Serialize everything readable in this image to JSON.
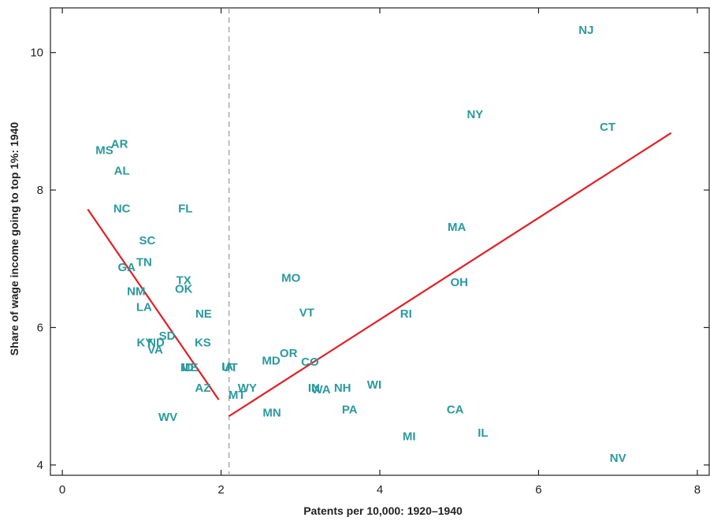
{
  "chart_data": {
    "type": "scatter",
    "title": "",
    "xlabel": "Patents per 10,000: 1920–1940",
    "ylabel": "Share of wage income going to top 1%: 1940",
    "xlim": [
      -0.15,
      8.15
    ],
    "ylim": [
      3.85,
      10.65
    ],
    "x_ticks": [
      0,
      2,
      4,
      6,
      8
    ],
    "y_ticks": [
      4,
      6,
      8,
      10
    ],
    "grid": false,
    "legend": "none",
    "threshold_x": 2.1,
    "colors": {
      "points": "#2a9a9e",
      "fit": "#e31e24",
      "threshold": "#a7a9ac",
      "axes": "#231f20"
    },
    "points": [
      {
        "label": "NJ",
        "x": 6.6,
        "y": 10.33
      },
      {
        "label": "CT",
        "x": 6.87,
        "y": 8.92
      },
      {
        "label": "NY",
        "x": 5.2,
        "y": 9.1
      },
      {
        "label": "MA",
        "x": 4.97,
        "y": 7.46
      },
      {
        "label": "OH",
        "x": 5.0,
        "y": 6.66
      },
      {
        "label": "RI",
        "x": 4.33,
        "y": 6.2
      },
      {
        "label": "MS",
        "x": 0.53,
        "y": 8.58
      },
      {
        "label": "AR",
        "x": 0.72,
        "y": 8.67
      },
      {
        "label": "AL",
        "x": 0.75,
        "y": 8.28
      },
      {
        "label": "NC",
        "x": 0.75,
        "y": 7.73
      },
      {
        "label": "FL",
        "x": 1.55,
        "y": 7.73
      },
      {
        "label": "SC",
        "x": 1.07,
        "y": 7.27
      },
      {
        "label": "TN",
        "x": 1.03,
        "y": 6.95
      },
      {
        "label": "GA",
        "x": 0.81,
        "y": 6.88
      },
      {
        "label": "TX",
        "x": 1.53,
        "y": 6.69
      },
      {
        "label": "OK",
        "x": 1.53,
        "y": 6.56
      },
      {
        "label": "NM",
        "x": 0.93,
        "y": 6.53
      },
      {
        "label": "LA",
        "x": 1.03,
        "y": 6.3
      },
      {
        "label": "NE",
        "x": 1.78,
        "y": 6.2
      },
      {
        "label": "SD",
        "x": 1.32,
        "y": 5.88
      },
      {
        "label": "KY",
        "x": 1.04,
        "y": 5.78
      },
      {
        "label": "ND",
        "x": 1.18,
        "y": 5.78
      },
      {
        "label": "VA",
        "x": 1.17,
        "y": 5.68
      },
      {
        "label": "KS",
        "x": 1.77,
        "y": 5.78
      },
      {
        "label": "ID",
        "x": 1.58,
        "y": 5.42
      },
      {
        "label": "ME",
        "x": 1.6,
        "y": 5.42
      },
      {
        "label": "IA",
        "x": 2.08,
        "y": 5.43
      },
      {
        "label": "UT",
        "x": 2.11,
        "y": 5.42
      },
      {
        "label": "AZ",
        "x": 1.77,
        "y": 5.12
      },
      {
        "label": "WV",
        "x": 1.33,
        "y": 4.7
      },
      {
        "label": "WY",
        "x": 2.33,
        "y": 5.12
      },
      {
        "label": "MT",
        "x": 2.2,
        "y": 5.02
      },
      {
        "label": "MO",
        "x": 2.88,
        "y": 6.72
      },
      {
        "label": "VT",
        "x": 3.08,
        "y": 6.22
      },
      {
        "label": "OR",
        "x": 2.85,
        "y": 5.63
      },
      {
        "label": "MD",
        "x": 2.63,
        "y": 5.52
      },
      {
        "label": "CO",
        "x": 3.12,
        "y": 5.5
      },
      {
        "label": "IN",
        "x": 3.17,
        "y": 5.12
      },
      {
        "label": "WA",
        "x": 3.26,
        "y": 5.1
      },
      {
        "label": "NH",
        "x": 3.53,
        "y": 5.12
      },
      {
        "label": "WI",
        "x": 3.93,
        "y": 5.17
      },
      {
        "label": "PA",
        "x": 3.62,
        "y": 4.81
      },
      {
        "label": "MN",
        "x": 2.64,
        "y": 4.76
      },
      {
        "label": "CA",
        "x": 4.95,
        "y": 4.81
      },
      {
        "label": "IL",
        "x": 5.3,
        "y": 4.47
      },
      {
        "label": "MI",
        "x": 4.37,
        "y": 4.42
      },
      {
        "label": "NV",
        "x": 7.0,
        "y": 4.1
      }
    ],
    "fit_lines": [
      {
        "x": [
          0.32,
          1.97
        ],
        "y": [
          7.72,
          4.95
        ]
      },
      {
        "x": [
          2.1,
          7.67
        ],
        "y": [
          4.71,
          8.83
        ]
      }
    ]
  }
}
